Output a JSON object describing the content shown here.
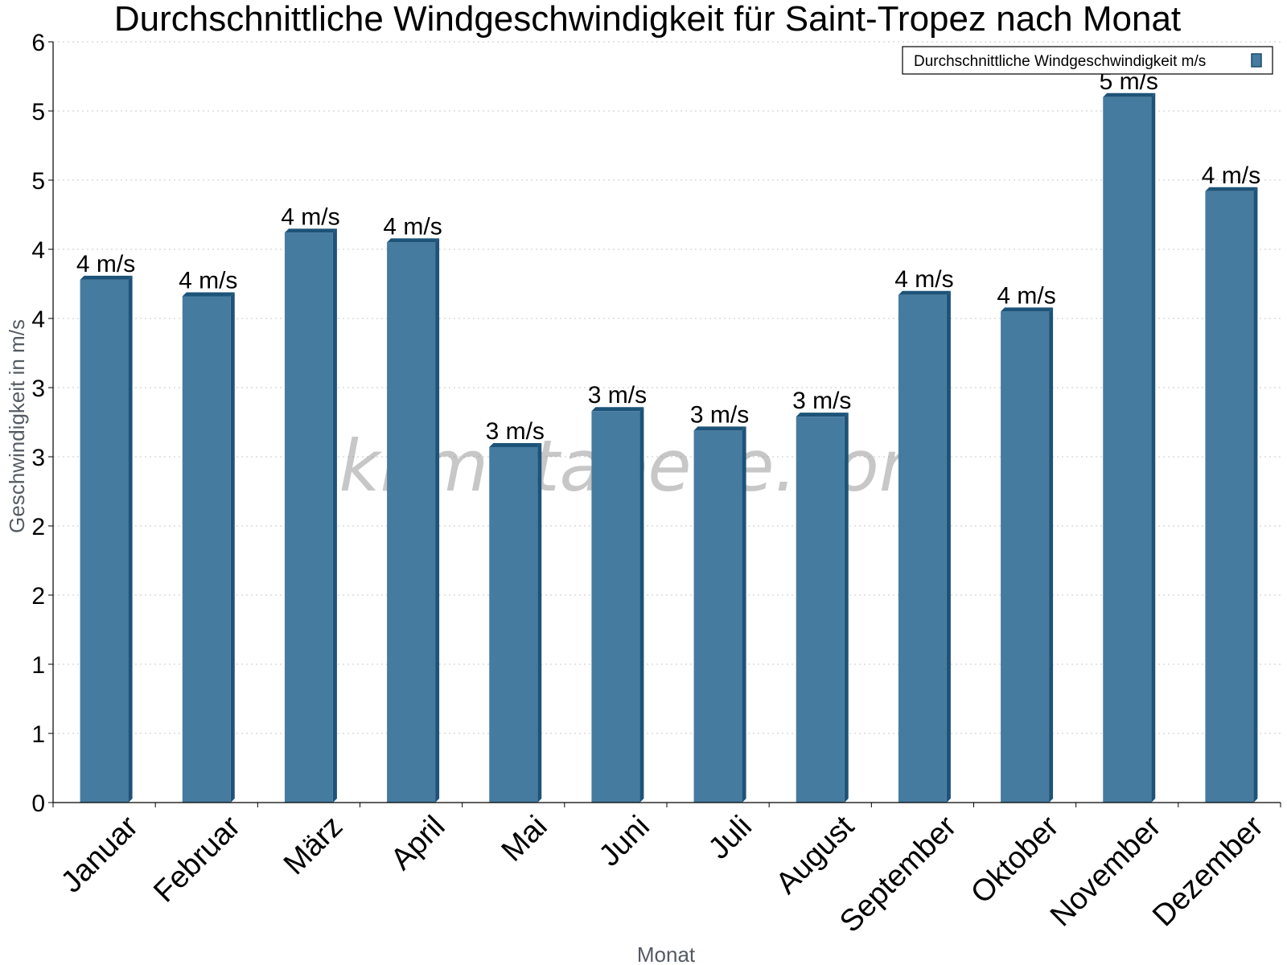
{
  "chart_data": {
    "type": "bar",
    "title": "Durchschnittliche Windgeschwindigkeit für Saint-Tropez nach Monat",
    "xlabel": "Monat",
    "ylabel": "Geschwindigkeit in m/s",
    "ylim": [
      0,
      5.5
    ],
    "y_ticks": [
      {
        "value": 0,
        "label": "0"
      },
      {
        "value": 0.5,
        "label": "1"
      },
      {
        "value": 1.0,
        "label": "1"
      },
      {
        "value": 1.5,
        "label": "2"
      },
      {
        "value": 2.0,
        "label": "2"
      },
      {
        "value": 2.5,
        "label": "3"
      },
      {
        "value": 3.0,
        "label": "3"
      },
      {
        "value": 3.5,
        "label": "4"
      },
      {
        "value": 4.0,
        "label": "4"
      },
      {
        "value": 4.5,
        "label": "5"
      },
      {
        "value": 5.0,
        "label": "5"
      },
      {
        "value": 5.5,
        "label": "6"
      }
    ],
    "grid": true,
    "legend_position": "top-right",
    "categories": [
      "Januar",
      "Februar",
      "März",
      "April",
      "Mai",
      "Juni",
      "Juli",
      "August",
      "September",
      "Oktober",
      "November",
      "Dezember"
    ],
    "series": [
      {
        "name": "Durchschnittliche Windgeschwindigkeit m/s",
        "color": "#467ba0",
        "values": [
          3.78,
          3.66,
          4.12,
          4.05,
          2.57,
          2.83,
          2.69,
          2.79,
          3.67,
          3.55,
          5.1,
          4.42
        ],
        "labels": [
          "4 m/s",
          "4 m/s",
          "4 m/s",
          "4 m/s",
          "3 m/s",
          "3 m/s",
          "3 m/s",
          "3 m/s",
          "4 m/s",
          "4 m/s",
          "5 m/s",
          "4 m/s"
        ]
      }
    ],
    "watermark": "klimatabelle.com"
  }
}
